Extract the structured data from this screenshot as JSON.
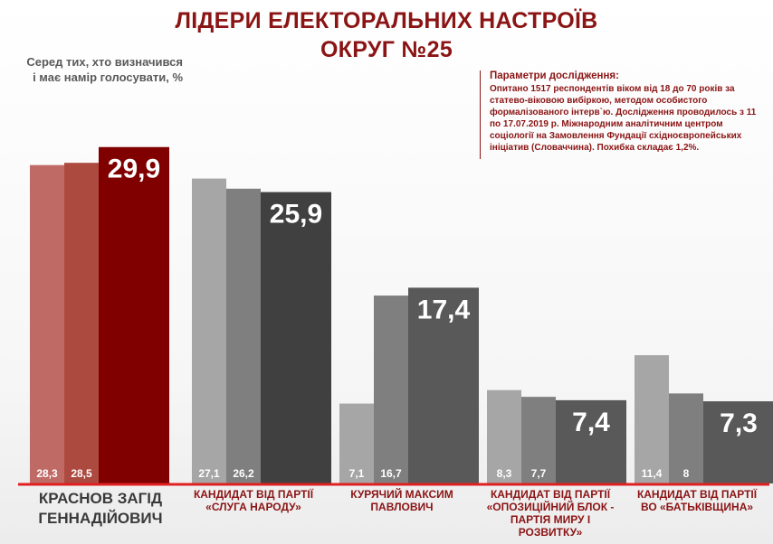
{
  "header": {
    "title_line1": "ЛІДЕРИ ЕЛЕКТОРАЛЬНИХ НАСТРОЇВ",
    "title_line2": "ОКРУГ №25",
    "subtitle_line1": "Серед тих, хто визначився",
    "subtitle_line2": "і має намір голосувати, %"
  },
  "params": {
    "heading": "Параметри дослідження:",
    "body": "Опитано 1517 респондентів віком від 18 до 70 років за статево-віковою вибіркою, методом особистого формалізованого інтерв`ю. Дослідження проводилось з 11 по 17.07.2019 р. Міжнародним аналітичним центром соціології на Замовлення Фундації східноєвропейських ініціатив (Словаччина). Похибка складає 1,2%."
  },
  "chart_data": {
    "type": "bar",
    "categories": [
      "КРАСНОВ ЗАГІД ГЕННАДІЙОВИЧ",
      "КАНДИДАТ ВІД ПАРТІЇ «СЛУГА НАРОДУ»",
      "КУРЯЧИЙ МАКСИМ ПАВЛОВИЧ",
      "КАНДИДАТ ВІД ПАРТІЇ «ОПОЗИЦІЙНИЙ БЛОК - ПАРТІЯ МИРУ І РОЗВИТКУ»",
      "КАНДИДАТ ВІД ПАРТІЇ ВО «БАТЬКІВЩИНА»"
    ],
    "category_lines": [
      [
        "КРАСНОВ ЗАГІД",
        "ГЕННАДІЙОВИЧ"
      ],
      [
        "КАНДИДАТ ВІД ПАРТІЇ",
        "«СЛУГА НАРОДУ»"
      ],
      [
        "КУРЯЧИЙ МАКСИМ",
        "ПАВЛОВИЧ"
      ],
      [
        "КАНДИДАТ ВІД ПАРТІЇ",
        "«ОПОЗИЦІЙНИЙ БЛОК -",
        "ПАРТІЯ МИРУ І",
        "РОЗВИТКУ»"
      ],
      [
        "КАНДИДАТ ВІД ПАРТІЇ",
        "ВО «БАТЬКІВЩИНА»"
      ]
    ],
    "series": [
      {
        "values": [
          28.3,
          27.1,
          7.1,
          8.3,
          11.4
        ]
      },
      {
        "values": [
          28.5,
          26.2,
          16.7,
          7.7,
          8
        ]
      },
      {
        "values": [
          29.9,
          25.9,
          17.4,
          7.4,
          7.3
        ]
      }
    ],
    "value_labels": [
      [
        "28,3",
        "27,1",
        "7,1",
        "8,3",
        "11,4"
      ],
      [
        "28,5",
        "26,2",
        "16,7",
        "7,7",
        "8"
      ],
      [
        "29,9",
        "25,9",
        "17,4",
        "7,4",
        "7,3"
      ]
    ],
    "ylim": [
      0,
      35
    ],
    "grid": false,
    "colors": {
      "first_group": [
        "#c06a66",
        "#ad4a40",
        "#800000"
      ],
      "other_groups": [
        "#a6a6a6",
        "#7f7f7f",
        "#595959"
      ],
      "second_group_last": "#404040",
      "baseline": "#e02020"
    }
  }
}
